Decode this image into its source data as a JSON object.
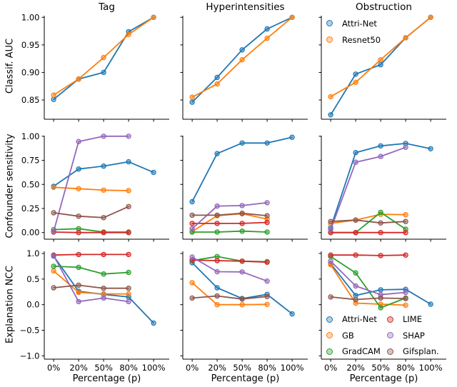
{
  "figure": {
    "column_titles": [
      "Tag",
      "Hyperintensities",
      "Obstruction"
    ],
    "row_ylabels": [
      "Classif. AUC",
      "Confounder sensitivity",
      "Explanation NCC"
    ],
    "xlabel": "Percentage (p)",
    "text_color": "#000000",
    "background": "#ffffff"
  },
  "legend_classifiers": {
    "items": [
      {
        "label": "Attri-Net",
        "color": "#1f77b4"
      },
      {
        "label": "Resnet50",
        "color": "#ff7f0e"
      }
    ]
  },
  "legend_explainers": {
    "col1": [
      {
        "label": "Attri-Net",
        "color": "#1f77b4"
      },
      {
        "label": "GB",
        "color": "#ff7f0e"
      },
      {
        "label": "GradCAM",
        "color": "#2ca02c"
      }
    ],
    "col2": [
      {
        "label": "LIME",
        "color": "#d62728"
      },
      {
        "label": "SHAP",
        "color": "#9467bd"
      },
      {
        "label": "Gifsplan.",
        "color": "#8c564b"
      }
    ]
  },
  "chart_data": {
    "type": "line",
    "categories": [
      "0%",
      "20%",
      "50%",
      "80%",
      "100%"
    ],
    "xlabel": "Percentage (p)",
    "columns": [
      "Tag",
      "Hyperintensities",
      "Obstruction"
    ],
    "grid": false,
    "rows": [
      {
        "ylabel": "Classif. AUC",
        "ylim": [
          0.815,
          1.003
        ],
        "yticks": [
          1.0,
          0.95,
          0.9,
          0.85
        ],
        "yticklabels": [
          "1.00",
          "0.95",
          "0.90",
          "0.85"
        ],
        "panels": [
          {
            "column": "Tag",
            "series": [
              {
                "name": "Attri-Net",
                "color": "#1f77b4",
                "values": [
                  0.851,
                  0.888,
                  0.9,
                  0.974,
                  1.0
                ]
              },
              {
                "name": "Resnet50",
                "color": "#ff7f0e",
                "values": [
                  0.859,
                  0.888,
                  0.927,
                  0.969,
                  1.0
                ]
              }
            ]
          },
          {
            "column": "Hyperintensities",
            "series": [
              {
                "name": "Attri-Net",
                "color": "#1f77b4",
                "values": [
                  0.846,
                  0.891,
                  0.941,
                  0.979,
                  1.0
                ]
              },
              {
                "name": "Resnet50",
                "color": "#ff7f0e",
                "values": [
                  0.855,
                  0.879,
                  0.923,
                  0.962,
                  1.0
                ]
              }
            ]
          },
          {
            "column": "Obstruction",
            "series": [
              {
                "name": "Attri-Net",
                "color": "#1f77b4",
                "values": [
                  0.823,
                  0.897,
                  0.914,
                  0.963,
                  1.0
                ]
              },
              {
                "name": "Resnet50",
                "color": "#ff7f0e",
                "values": [
                  0.856,
                  0.882,
                  0.923,
                  0.963,
                  1.0
                ]
              }
            ]
          }
        ]
      },
      {
        "ylabel": "Confounder sensitivity",
        "ylim": [
          -0.069,
          1.006
        ],
        "yticks": [
          1.0,
          0.75,
          0.5,
          0.25,
          0.0
        ],
        "yticklabels": [
          "1.00",
          "0.75",
          "0.50",
          "0.25",
          "0.00"
        ],
        "panels": [
          {
            "column": "Tag",
            "series": [
              {
                "name": "Attri-Net",
                "color": "#1f77b4",
                "values": [
                  0.48,
                  0.66,
                  0.69,
                  0.735,
                  0.625
                ]
              },
              {
                "name": "GB",
                "color": "#ff7f0e",
                "values": [
                  0.47,
                  0.455,
                  0.44,
                  0.435,
                  null
                ]
              },
              {
                "name": "GradCAM",
                "color": "#2ca02c",
                "values": [
                  0.03,
                  0.04,
                  0.005,
                  0.005,
                  null
                ]
              },
              {
                "name": "LIME",
                "color": "#d62728",
                "values": [
                  0.005,
                  0.0,
                  0.0,
                  0.0,
                  null
                ]
              },
              {
                "name": "SHAP",
                "color": "#9467bd",
                "values": [
                  0.01,
                  0.945,
                  1.0,
                  1.0,
                  null
                ]
              },
              {
                "name": "Gifsplan.",
                "color": "#8c564b",
                "values": [
                  0.205,
                  0.17,
                  0.155,
                  0.27,
                  null
                ]
              }
            ]
          },
          {
            "column": "Hyperintensities",
            "series": [
              {
                "name": "Attri-Net",
                "color": "#1f77b4",
                "values": [
                  0.32,
                  0.82,
                  0.93,
                  0.93,
                  0.99
                ]
              },
              {
                "name": "GB",
                "color": "#ff7f0e",
                "values": [
                  0.01,
                  0.175,
                  0.195,
                  0.14,
                  null
                ]
              },
              {
                "name": "GradCAM",
                "color": "#2ca02c",
                "values": [
                  0.005,
                  0.005,
                  0.015,
                  0.005,
                  null
                ]
              },
              {
                "name": "LIME",
                "color": "#d62728",
                "values": [
                  0.095,
                  0.095,
                  0.095,
                  0.105,
                  null
                ]
              },
              {
                "name": "SHAP",
                "color": "#9467bd",
                "values": [
                  0.04,
                  0.275,
                  0.28,
                  0.31,
                  null
                ]
              },
              {
                "name": "Gifsplan.",
                "color": "#8c564b",
                "values": [
                  0.18,
                  0.18,
                  0.2,
                  0.175,
                  null
                ]
              }
            ]
          },
          {
            "column": "Obstruction",
            "series": [
              {
                "name": "Attri-Net",
                "color": "#1f77b4",
                "values": [
                  0.05,
                  0.83,
                  0.9,
                  0.925,
                  0.87
                ]
              },
              {
                "name": "GB",
                "color": "#ff7f0e",
                "values": [
                  0.095,
                  0.13,
                  0.19,
                  0.185,
                  null
                ]
              },
              {
                "name": "GradCAM",
                "color": "#2ca02c",
                "values": [
                  0.0,
                  0.0,
                  0.21,
                  0.035,
                  null
                ]
              },
              {
                "name": "LIME",
                "color": "#d62728",
                "values": [
                  0.0,
                  0.0,
                  0.0,
                  0.0,
                  null
                ]
              },
              {
                "name": "SHAP",
                "color": "#9467bd",
                "values": [
                  0.03,
                  0.73,
                  0.79,
                  0.885,
                  null
                ]
              },
              {
                "name": "Gifsplan.",
                "color": "#8c564b",
                "values": [
                  0.115,
                  0.13,
                  0.1,
                  0.115,
                  null
                ]
              }
            ]
          }
        ]
      },
      {
        "ylabel": "Explanation NCC",
        "ylim": [
          -1.065,
          1.042
        ],
        "yticks": [
          1.0,
          0.5,
          0.0,
          -0.5,
          -1.0
        ],
        "yticklabels": [
          "1.0",
          "0.5",
          "0.0",
          "−0.5",
          "−1.0"
        ],
        "panels": [
          {
            "column": "Tag",
            "series": [
              {
                "name": "Attri-Net",
                "color": "#1f77b4",
                "values": [
                  0.95,
                  0.26,
                  0.2,
                  0.15,
                  -0.36
                ]
              },
              {
                "name": "GB",
                "color": "#ff7f0e",
                "values": [
                  0.66,
                  0.24,
                  0.21,
                  0.21,
                  null
                ]
              },
              {
                "name": "GradCAM",
                "color": "#2ca02c",
                "values": [
                  0.75,
                  0.73,
                  0.6,
                  0.63,
                  null
                ]
              },
              {
                "name": "LIME",
                "color": "#d62728",
                "values": [
                  0.97,
                  0.98,
                  0.98,
                  0.98,
                  null
                ]
              },
              {
                "name": "SHAP",
                "color": "#9467bd",
                "values": [
                  0.96,
                  0.06,
                  0.13,
                  0.06,
                  null
                ]
              },
              {
                "name": "Gifsplan.",
                "color": "#8c564b",
                "values": [
                  0.33,
                  0.38,
                  0.32,
                  0.32,
                  null
                ]
              }
            ]
          },
          {
            "column": "Hyperintensities",
            "series": [
              {
                "name": "Attri-Net",
                "color": "#1f77b4",
                "values": [
                  0.82,
                  0.33,
                  0.12,
                  0.2,
                  -0.18
                ]
              },
              {
                "name": "GB",
                "color": "#ff7f0e",
                "values": [
                  0.43,
                  0.0,
                  0.0,
                  0.005,
                  null
                ]
              },
              {
                "name": "GradCAM",
                "color": "#2ca02c",
                "values": [
                  0.86,
                  0.94,
                  0.85,
                  0.84,
                  null
                ]
              },
              {
                "name": "LIME",
                "color": "#d62728",
                "values": [
                  0.87,
                  0.86,
                  0.85,
                  0.83,
                  null
                ]
              },
              {
                "name": "SHAP",
                "color": "#9467bd",
                "values": [
                  0.93,
                  0.645,
                  0.64,
                  0.46,
                  null
                ]
              },
              {
                "name": "Gifsplan.",
                "color": "#8c564b",
                "values": [
                  0.13,
                  0.17,
                  0.11,
                  0.16,
                  null
                ]
              }
            ]
          },
          {
            "column": "Obstruction",
            "series": [
              {
                "name": "Attri-Net",
                "color": "#1f77b4",
                "values": [
                  0.8,
                  0.18,
                  0.29,
                  0.3,
                  0.01
                ]
              },
              {
                "name": "GB",
                "color": "#ff7f0e",
                "values": [
                  0.78,
                  0.03,
                  0.01,
                  -0.01,
                  null
                ]
              },
              {
                "name": "GradCAM",
                "color": "#2ca02c",
                "values": [
                  0.94,
                  0.62,
                  -0.06,
                  0.13,
                  null
                ]
              },
              {
                "name": "LIME",
                "color": "#d62728",
                "values": [
                  0.97,
                  0.97,
                  0.96,
                  0.97,
                  null
                ]
              },
              {
                "name": "SHAP",
                "color": "#9467bd",
                "values": [
                  0.85,
                  0.365,
                  0.195,
                  0.24,
                  null
                ]
              },
              {
                "name": "Gifsplan.",
                "color": "#8c564b",
                "values": [
                  0.15,
                  0.1,
                  0.13,
                  0.12,
                  null
                ]
              }
            ]
          }
        ]
      }
    ]
  }
}
